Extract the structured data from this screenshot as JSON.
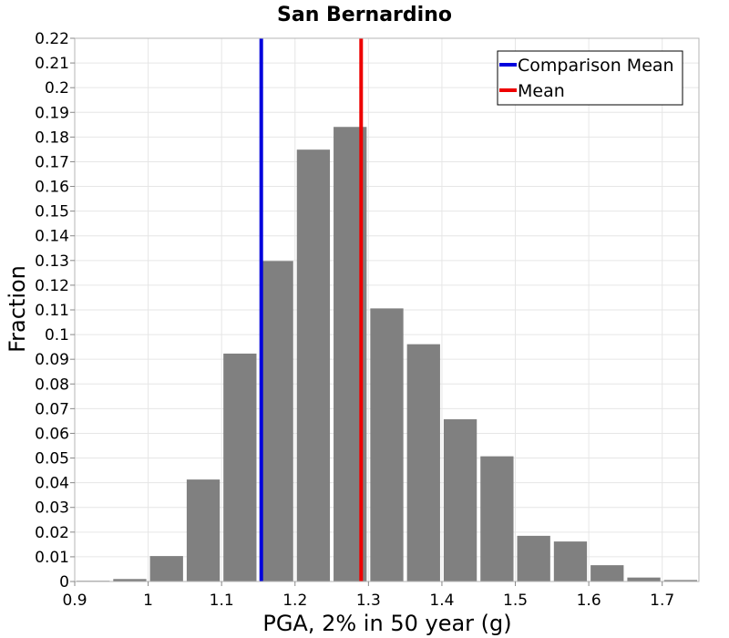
{
  "chart_data": {
    "type": "bar",
    "title": "San Bernardino",
    "xlabel": "PGA, 2% in 50 year (g)",
    "ylabel": "Fraction",
    "xlim": [
      0.9,
      1.75
    ],
    "ylim": [
      0,
      0.22
    ],
    "xticks": [
      0.9,
      1,
      1.1,
      1.2,
      1.3,
      1.4,
      1.5,
      1.6,
      1.7
    ],
    "yticks": [
      0,
      0.01,
      0.02,
      0.03,
      0.04,
      0.05,
      0.06,
      0.07,
      0.08,
      0.09,
      0.1,
      0.11,
      0.12,
      0.13,
      0.14,
      0.15,
      0.16,
      0.17,
      0.18,
      0.19,
      0.2,
      0.21,
      0.22
    ],
    "bin_width": 0.05,
    "bins": [
      {
        "x": 0.9,
        "value": 0.0003
      },
      {
        "x": 0.95,
        "value": 0.001
      },
      {
        "x": 1.0,
        "value": 0.0103
      },
      {
        "x": 1.05,
        "value": 0.0413
      },
      {
        "x": 1.1,
        "value": 0.0923
      },
      {
        "x": 1.15,
        "value": 0.1298
      },
      {
        "x": 1.2,
        "value": 0.1749
      },
      {
        "x": 1.25,
        "value": 0.1841
      },
      {
        "x": 1.3,
        "value": 0.1106
      },
      {
        "x": 1.35,
        "value": 0.0961
      },
      {
        "x": 1.4,
        "value": 0.0657
      },
      {
        "x": 1.45,
        "value": 0.0507
      },
      {
        "x": 1.5,
        "value": 0.0185
      },
      {
        "x": 1.55,
        "value": 0.0162
      },
      {
        "x": 1.6,
        "value": 0.0066
      },
      {
        "x": 1.65,
        "value": 0.0016
      },
      {
        "x": 1.7,
        "value": 0.0006
      }
    ],
    "bar_color": "#808080",
    "grid": true,
    "legend_position": "top-right",
    "reference_lines": [
      {
        "name": "Comparison Mean",
        "x": 1.154,
        "color": "#0000dd"
      },
      {
        "name": "Mean",
        "x": 1.29,
        "color": "#ee0000"
      }
    ]
  }
}
